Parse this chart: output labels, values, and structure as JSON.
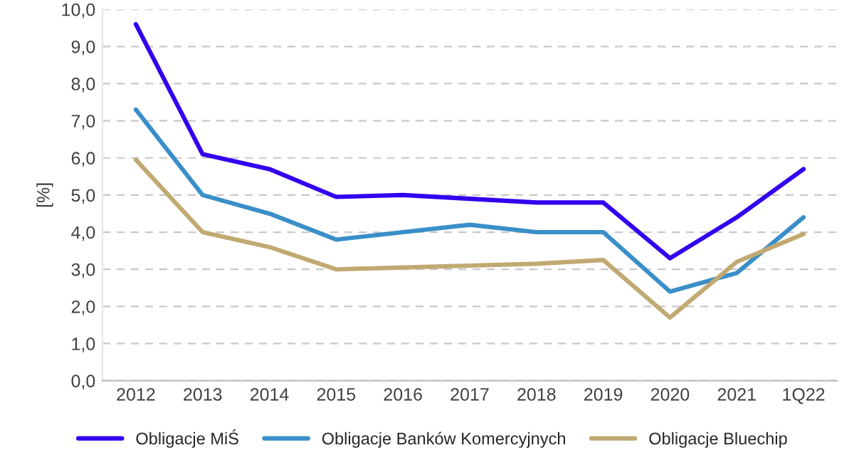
{
  "chart_data": {
    "type": "line",
    "ylabel": "[%]",
    "categories": [
      "2012",
      "2013",
      "2014",
      "2015",
      "2016",
      "2017",
      "2018",
      "2019",
      "2020",
      "2021",
      "1Q22"
    ],
    "series": [
      {
        "name": "Obligacje MiŚ",
        "color": "#3300ee",
        "values": [
          9.6,
          6.1,
          5.7,
          4.95,
          5.0,
          4.9,
          4.8,
          4.8,
          3.3,
          4.4,
          5.7
        ]
      },
      {
        "name": "Obligacje Banków Komercyjnych",
        "color": "#3a8fc8",
        "values": [
          7.3,
          5.0,
          4.5,
          3.8,
          4.0,
          4.2,
          4.0,
          4.0,
          2.4,
          2.9,
          4.4
        ]
      },
      {
        "name": "Obligacje Bluechip",
        "color": "#c0aa72",
        "values": [
          5.95,
          4.0,
          3.6,
          3.0,
          3.05,
          3.1,
          3.15,
          3.25,
          1.7,
          3.2,
          3.95
        ]
      }
    ],
    "ylim": [
      0,
      10
    ],
    "yticks": [
      {
        "value": 0,
        "label": "0,0"
      },
      {
        "value": 1,
        "label": "1,0"
      },
      {
        "value": 2,
        "label": "2,0"
      },
      {
        "value": 3,
        "label": "3,0"
      },
      {
        "value": 4,
        "label": "4,0"
      },
      {
        "value": 5,
        "label": "5,0"
      },
      {
        "value": 6,
        "label": "6,0"
      },
      {
        "value": 7,
        "label": "7,0"
      },
      {
        "value": 8,
        "label": "8,0"
      },
      {
        "value": 9,
        "label": "9,0"
      },
      {
        "value": 10,
        "label": "10,0"
      }
    ],
    "grid": "y",
    "legend": "bottom",
    "line_style": "solid",
    "marker": "none"
  }
}
